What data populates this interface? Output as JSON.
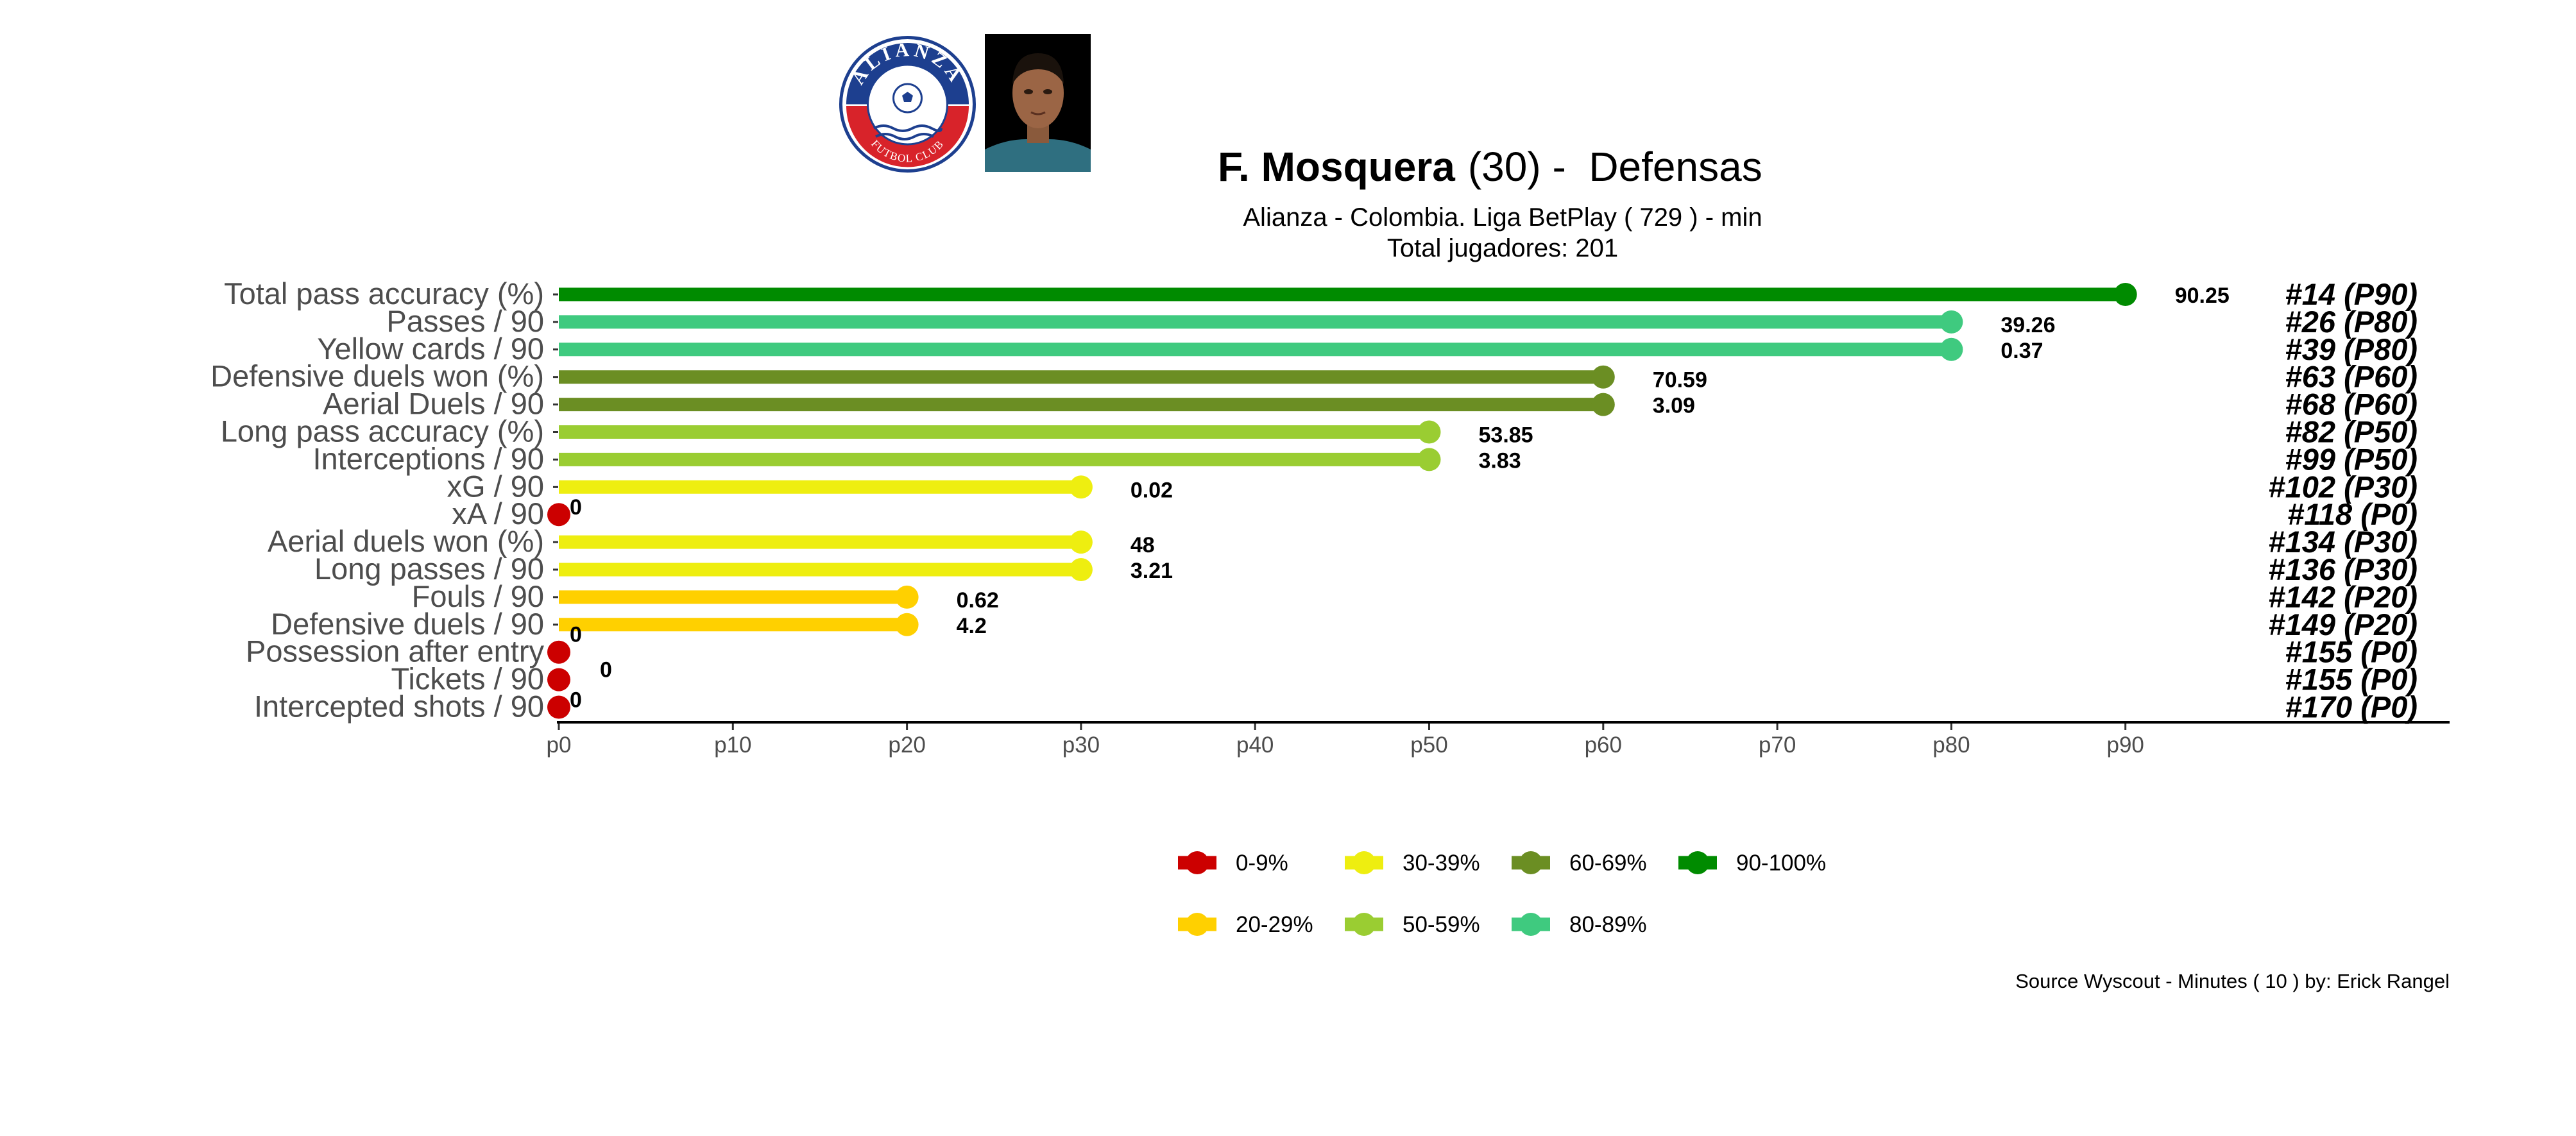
{
  "header": {
    "player_name": "F. Mosquera",
    "player_age": "(30)",
    "position_sep": " -  ",
    "position": "Defensas",
    "subtitle_line1": "Alianza  -  Colombia. Liga BetPlay  ( 729 ) - min",
    "subtitle_line2": "Total jugadores:  201",
    "club_logo_top": "ALIANZA",
    "club_logo_bottom": "FUTBOL CLUB"
  },
  "footer": {
    "source": "Source Wyscout - Minutes ( 10 ) by: Erick Rangel"
  },
  "colors": {
    "0-9%": "#cc0000",
    "20-29%": "#ffd000",
    "30-39%": "#eeee10",
    "50-59%": "#9acd32",
    "60-69%": "#6b8e23",
    "80-89%": "#3fca7f",
    "90-100%": "#008b00"
  },
  "chart_data": {
    "type": "bar",
    "orientation": "horizontal lollipop",
    "x_ticks": [
      "p0",
      "p10",
      "p20",
      "p30",
      "p40",
      "p50",
      "p60",
      "p70",
      "p80",
      "p90"
    ],
    "xlim": [
      0,
      90
    ],
    "grid": false,
    "legend_position": "bottom",
    "legend": [
      {
        "label": "0-9%",
        "color": "#cc0000"
      },
      {
        "label": "30-39%",
        "color": "#eeee10"
      },
      {
        "label": "60-69%",
        "color": "#6b8e23"
      },
      {
        "label": "90-100%",
        "color": "#008b00"
      },
      {
        "label": "20-29%",
        "color": "#ffd000"
      },
      {
        "label": "50-59%",
        "color": "#9acd32"
      },
      {
        "label": "80-89%",
        "color": "#3fca7f"
      }
    ],
    "metrics": [
      {
        "label": "Total pass accuracy (%)",
        "percentile": 90,
        "value": "90.25",
        "rank": "#14 (P90)",
        "group": "90-100%"
      },
      {
        "label": "Passes / 90",
        "percentile": 80,
        "value": "39.26",
        "rank": "#26 (P80)",
        "group": "80-89%"
      },
      {
        "label": "Yellow cards / 90",
        "percentile": 80,
        "value": "0.37",
        "rank": "#39 (P80)",
        "group": "80-89%"
      },
      {
        "label": "Defensive duels won (%)",
        "percentile": 60,
        "value": "70.59",
        "rank": "#63 (P60)",
        "group": "60-69%"
      },
      {
        "label": "Aerial Duels / 90",
        "percentile": 60,
        "value": "3.09",
        "rank": "#68 (P60)",
        "group": "60-69%"
      },
      {
        "label": "Long pass accuracy (%)",
        "percentile": 50,
        "value": "53.85",
        "rank": "#82 (P50)",
        "group": "50-59%"
      },
      {
        "label": "Interceptions / 90",
        "percentile": 50,
        "value": "3.83",
        "rank": "#99 (P50)",
        "group": "50-59%"
      },
      {
        "label": "xG / 90",
        "percentile": 30,
        "value": "0.02",
        "rank": "#102 (P30)",
        "group": "30-39%"
      },
      {
        "label": "xA / 90",
        "percentile": 0,
        "value": "0",
        "rank": "#118 (P0)",
        "group": "0-9%"
      },
      {
        "label": "Aerial duels won (%)",
        "percentile": 30,
        "value": "48",
        "rank": "#134 (P30)",
        "group": "30-39%"
      },
      {
        "label": "Long passes / 90",
        "percentile": 30,
        "value": "3.21",
        "rank": "#136 (P30)",
        "group": "30-39%"
      },
      {
        "label": "Fouls / 90",
        "percentile": 20,
        "value": "0.62",
        "rank": "#142 (P20)",
        "group": "20-29%"
      },
      {
        "label": "Defensive duels / 90",
        "percentile": 20,
        "value": "4.2",
        "rank": "#149 (P20)",
        "group": "20-29%"
      },
      {
        "label": "Possession after entry",
        "percentile": 0,
        "value": "0",
        "rank": "#155 (P0)",
        "group": "0-9%"
      },
      {
        "label": "Tickets / 90",
        "percentile": 0,
        "value": "0",
        "rank": "#155 (P0)",
        "group": "0-9%"
      },
      {
        "label": "Intercepted shots / 90",
        "percentile": 0,
        "value": "0",
        "rank": "#170 (P0)",
        "group": "0-9%"
      }
    ]
  }
}
